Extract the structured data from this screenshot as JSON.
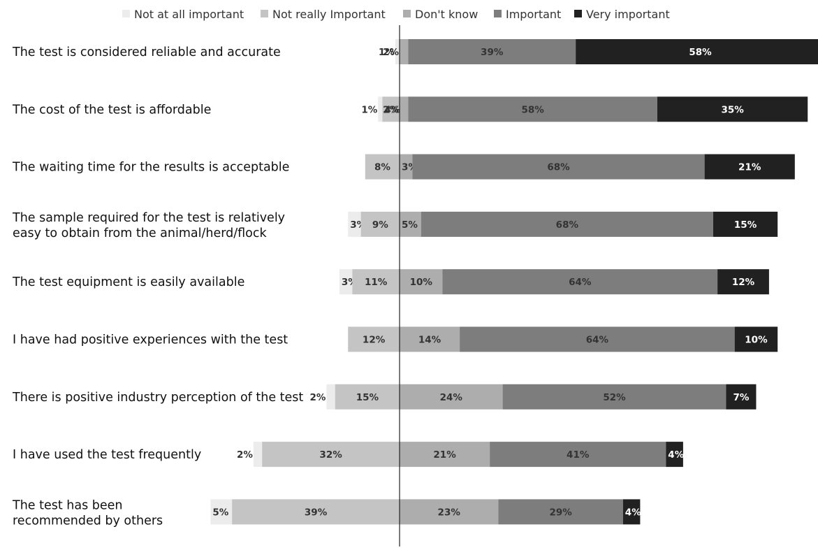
{
  "chart_data": {
    "type": "bar",
    "orientation": "horizontal",
    "stacked": "diverging",
    "title": "",
    "xlabel": "",
    "ylabel": "",
    "grid": false,
    "legend_position": "top",
    "categories": [
      [
        "The test is considered reliable and accurate"
      ],
      [
        "The cost of the test is affordable"
      ],
      [
        "The waiting time for the results is acceptable"
      ],
      [
        "The sample required for the test is relatively",
        "easy to obtain from the animal/herd/flock"
      ],
      [
        "The test equipment is easily available"
      ],
      [
        "I have had positive experiences with the test"
      ],
      [
        "There is positive industry perception of the test"
      ],
      [
        "I have used the test frequently"
      ],
      [
        "The test has been",
        "recommended by others"
      ]
    ],
    "series": [
      {
        "name": "Not at all important",
        "color": "#ececec",
        "values": [
          1,
          1,
          0,
          3,
          3,
          0,
          2,
          2,
          5
        ]
      },
      {
        "name": "Not really Important",
        "color": "#c4c4c4",
        "values": [
          0,
          4,
          8,
          9,
          11,
          12,
          15,
          32,
          39
        ]
      },
      {
        "name": "Don't know",
        "color": "#adadad",
        "values": [
          2,
          2,
          3,
          5,
          10,
          14,
          24,
          21,
          23
        ]
      },
      {
        "name": "Important",
        "color": "#7d7d7d",
        "values": [
          39,
          58,
          68,
          68,
          64,
          64,
          52,
          41,
          29
        ]
      },
      {
        "name": "Very important",
        "color": "#212121",
        "values": [
          58,
          35,
          21,
          15,
          12,
          10,
          7,
          4,
          4
        ]
      }
    ]
  }
}
